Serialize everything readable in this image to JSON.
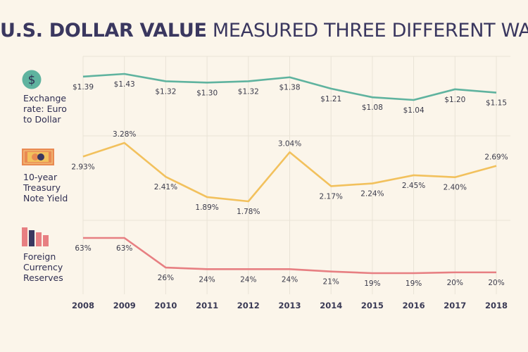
{
  "title": {
    "bold": "U.S. DOLLAR VALUE",
    "regular": "MEASURED THREE DIFFERENT WAYS"
  },
  "icons": {
    "exchange": "dollar-coin-icon",
    "treasury": "banknote-icon",
    "reserves": "bar-chart-icon"
  },
  "colors": {
    "background": "#fbf5ea",
    "exchange": "#5fb39f",
    "treasury": "#f2c15d",
    "reserves": "#e77f82",
    "grid": "#e9e3d6"
  },
  "chart_data": {
    "type": "line",
    "title": "U.S. DOLLAR VALUE MEASURED THREE DIFFERENT WAYS",
    "x": [
      "2008",
      "2009",
      "2010",
      "2011",
      "2012",
      "2013",
      "2014",
      "2015",
      "2016",
      "2017",
      "2018"
    ],
    "series": [
      {
        "name": "Exchange rate: Euro to Dollar",
        "values": [
          1.39,
          1.43,
          1.32,
          1.3,
          1.32,
          1.38,
          1.21,
          1.08,
          1.04,
          1.2,
          1.15
        ],
        "labels": [
          "$1.39",
          "$1.43",
          "$1.32",
          "$1.30",
          "$1.32",
          "$1.38",
          "$1.21",
          "$1.08",
          "$1.04",
          "$1.20",
          "$1.15"
        ]
      },
      {
        "name": "10-year Treasury Note Yield",
        "values": [
          2.93,
          3.28,
          2.41,
          1.89,
          1.78,
          3.04,
          2.17,
          2.24,
          2.45,
          2.4,
          2.69
        ],
        "labels": [
          "2.93%",
          "3.28%",
          "2.41%",
          "1.89%",
          "1.78%",
          "3.04%",
          "2.17%",
          "2.24%",
          "2.45%",
          "2.40%",
          "2.69%"
        ]
      },
      {
        "name": "Foreign Currency Reserves",
        "values": [
          63,
          63,
          26,
          24,
          24,
          24,
          21,
          19,
          19,
          20,
          20
        ],
        "labels": [
          "63%",
          "63%",
          "26%",
          "24%",
          "24%",
          "24%",
          "21%",
          "19%",
          "19%",
          "20%",
          "20%"
        ]
      }
    ],
    "grid": true
  }
}
